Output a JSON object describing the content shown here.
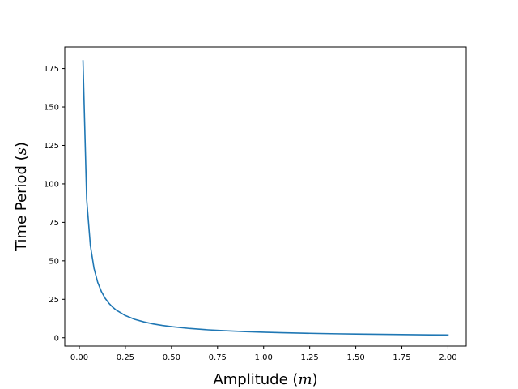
{
  "chart_data": {
    "type": "line",
    "title": "",
    "xlabel": {
      "prefix": "Amplitude (",
      "var": "m",
      "suffix": ")"
    },
    "ylabel": {
      "prefix": "Time Period (",
      "var": "s",
      "suffix": ")"
    },
    "xlim": [
      -0.079,
      2.099
    ],
    "ylim": [
      -5.4,
      189.0
    ],
    "xticks": [
      0.0,
      0.25,
      0.5,
      0.75,
      1.0,
      1.25,
      1.5,
      1.75,
      2.0
    ],
    "xtick_labels": [
      "0.00",
      "0.25",
      "0.50",
      "0.75",
      "1.00",
      "1.25",
      "1.50",
      "1.75",
      "2.00"
    ],
    "yticks": [
      0,
      25,
      50,
      75,
      100,
      125,
      150,
      175
    ],
    "ytick_labels": [
      "0",
      "25",
      "50",
      "75",
      "100",
      "125",
      "150",
      "175"
    ],
    "grid": false,
    "series": [
      {
        "color": "#1f77b4",
        "x": [
          0.02,
          0.04,
          0.06,
          0.08,
          0.1,
          0.12,
          0.14,
          0.16,
          0.18,
          0.2,
          0.25,
          0.3,
          0.35,
          0.4,
          0.45,
          0.5,
          0.6,
          0.7,
          0.8,
          0.9,
          1.0,
          1.1,
          1.2,
          1.3,
          1.4,
          1.5,
          1.6,
          1.7,
          1.8,
          1.9,
          2.0
        ],
        "y": [
          180.0,
          90.0,
          60.0,
          45.0,
          36.0,
          30.0,
          25.7,
          22.5,
          20.0,
          18.0,
          14.4,
          12.0,
          10.3,
          9.0,
          8.0,
          7.2,
          6.0,
          5.14,
          4.5,
          4.0,
          3.6,
          3.27,
          3.0,
          2.77,
          2.57,
          2.4,
          2.25,
          2.12,
          2.0,
          1.89,
          1.8
        ]
      }
    ]
  }
}
